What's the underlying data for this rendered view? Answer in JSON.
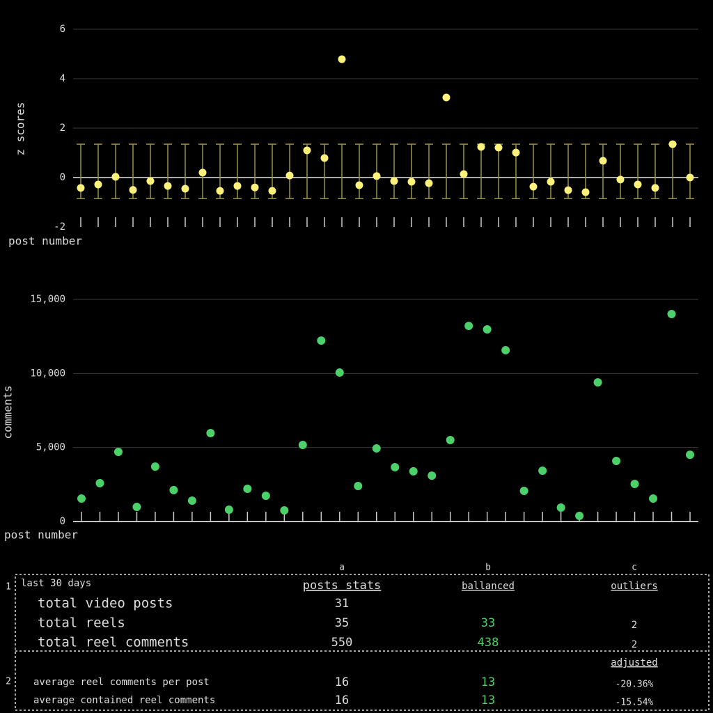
{
  "chart_data": [
    {
      "type": "scatter",
      "ylabel": "z scores",
      "xlabel": "post number",
      "color": "#fff27a",
      "error_color": "#9a9440",
      "values": [
        -0.42,
        -0.28,
        0.03,
        -0.5,
        -0.14,
        -0.34,
        -0.45,
        0.2,
        -0.54,
        -0.34,
        -0.4,
        -0.54,
        0.08,
        1.1,
        0.79,
        4.79,
        -0.31,
        0.06,
        -0.14,
        -0.17,
        -0.23,
        3.24,
        0.14,
        1.24,
        1.21,
        1.01,
        -0.37,
        -0.17,
        -0.51,
        -0.59,
        0.68,
        -0.08,
        -0.28,
        -0.42,
        1.35,
        0
      ],
      "error_bar": [
        -0.85,
        1.35
      ],
      "ylim": [
        -2,
        6
      ],
      "yticks": [
        -2,
        0,
        2,
        4,
        6
      ],
      "grid": true
    },
    {
      "type": "scatter",
      "ylabel": "comments",
      "xlabel": "post number",
      "color": "#4cd06a",
      "values": [
        1550,
        2590,
        4700,
        990,
        3710,
        2120,
        1410,
        5970,
        800,
        2210,
        1740,
        750,
        5170,
        12220,
        10060,
        2400,
        4940,
        3670,
        3390,
        3100,
        5500,
        13210,
        12980,
        11570,
        2070,
        3430,
        940,
        380,
        9400,
        4090,
        2540,
        1550,
        14010,
        4510
      ],
      "ylim": [
        0,
        15000
      ],
      "yticks": [
        0,
        {
          "value": 5000,
          "label": "5,000"
        },
        {
          "value": 10000,
          "label": "10,000"
        },
        {
          "value": 15000,
          "label": "15,000"
        }
      ],
      "grid": true
    }
  ],
  "table": {
    "columns": [
      "a",
      "b",
      "c"
    ],
    "sections": [
      {
        "number": "1",
        "caption": "last 30 days",
        "headers": [
          "posts stats",
          "ballanced",
          "outliers"
        ],
        "rows": [
          [
            "total video posts",
            "31"
          ],
          [
            "total reels",
            "35",
            "33",
            "2"
          ],
          [
            "total reel comments",
            "550",
            "438",
            "2"
          ]
        ]
      },
      {
        "number": "2",
        "headers": [
          null,
          null,
          "adjusted"
        ],
        "rows": [
          [
            "average reel comments per post",
            "16",
            "13",
            "-20.36%"
          ],
          [
            "average contained reel comments",
            "16",
            "13",
            "-15.54%"
          ]
        ]
      }
    ]
  }
}
